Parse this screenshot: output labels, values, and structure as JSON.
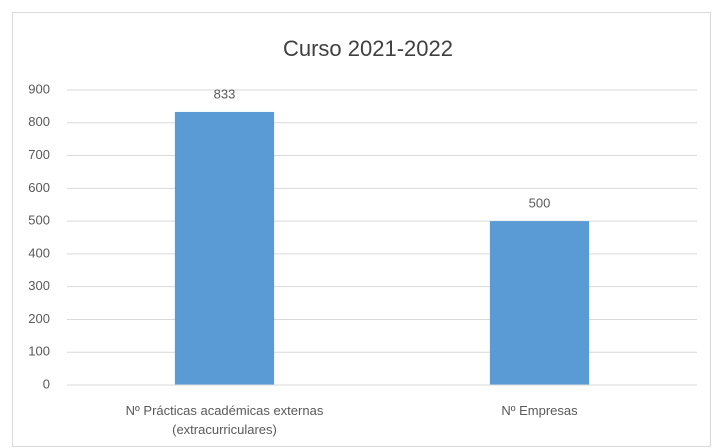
{
  "chart_data": {
    "type": "bar",
    "title": "Curso 2021-2022",
    "categories": [
      "Nº Prácticas académicas externas (extracurriculares)",
      "Nº Empresas"
    ],
    "values": [
      833,
      500
    ],
    "color": "#5b9bd5",
    "ylim": [
      0,
      900
    ],
    "yticks": [
      0,
      100,
      200,
      300,
      400,
      500,
      600,
      700,
      800,
      900
    ],
    "grid": true
  }
}
